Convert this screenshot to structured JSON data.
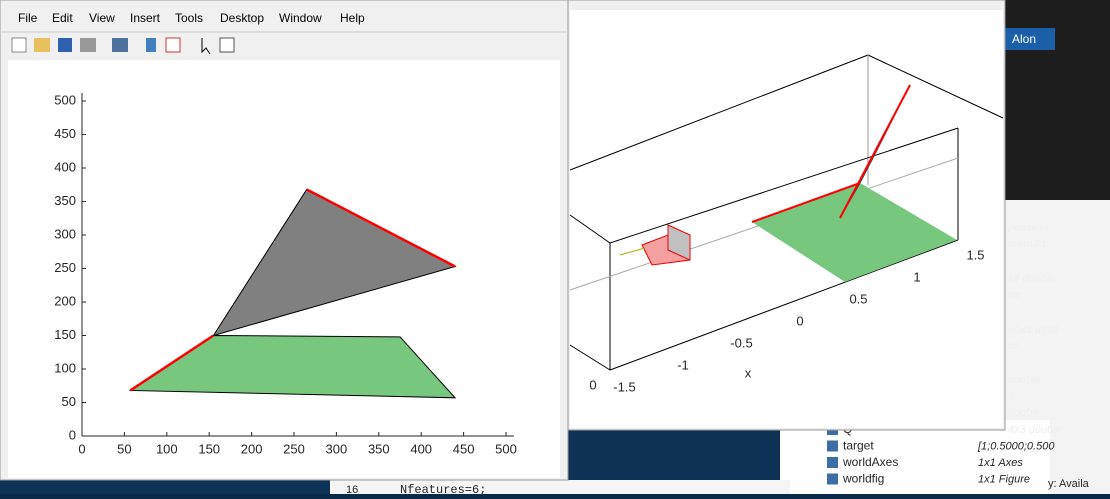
{
  "menu": [
    "File",
    "Edit",
    "View",
    "Insert",
    "Tools",
    "Desktop",
    "Window",
    "Help"
  ],
  "plot2d": {
    "xlim": [
      0,
      500
    ],
    "ylim": [
      0,
      500
    ],
    "xticks": [
      0,
      50,
      100,
      150,
      200,
      250,
      300,
      350,
      400,
      450,
      500
    ],
    "yticks": [
      0,
      50,
      100,
      150,
      200,
      250,
      300,
      350,
      400,
      450,
      500
    ],
    "polygons": [
      {
        "color": "#808080",
        "x": [
          265,
          440,
          155
        ],
        "y": [
          368,
          253,
          150
        ]
      },
      {
        "color": "#77c77f",
        "x": [
          57,
          155,
          375,
          440
        ],
        "y": [
          68,
          150,
          148,
          57
        ]
      }
    ],
    "edge_color": "#ff0000",
    "edges": [
      {
        "x": [
          265,
          440
        ],
        "y": [
          368,
          253
        ]
      },
      {
        "x": [
          57,
          155
        ],
        "y": [
          68,
          150
        ]
      }
    ]
  },
  "plot3d": {
    "axis_ticks": [
      -1.5,
      -1,
      -0.5,
      0,
      0.5,
      1,
      1.5
    ],
    "axis_label": "x",
    "corner_tick": 0
  },
  "desktop": {
    "user": "Alon",
    "workspace_fragments": [
      "perrecta",
      "mera3d",
      "x2 double",
      "ne",
      "60x3 uint8",
      "ns",
      "double",
      "ll",
      "double",
      "4x3 double"
    ],
    "variables": [
      [
        "Q",
        ""
      ],
      [
        "target",
        "[1;0.5000;0.500"
      ],
      [
        "worldAxes",
        "1x1 Axes"
      ],
      [
        "worldfig",
        "1x1 Figure"
      ]
    ],
    "status": "y: Availa",
    "code_line": "Nfeatures=6;",
    "line_number": "16"
  }
}
